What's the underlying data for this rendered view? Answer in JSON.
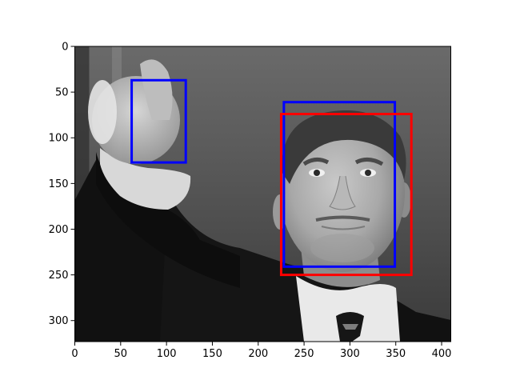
{
  "chart_data": {
    "type": "image",
    "xlim": [
      0,
      410
    ],
    "ylim": [
      323,
      0
    ],
    "x_ticks": [
      0,
      50,
      100,
      150,
      200,
      250,
      300,
      350,
      400
    ],
    "y_ticks": [
      0,
      50,
      100,
      150,
      200,
      250,
      300
    ],
    "image": {
      "mode": "grayscale",
      "subject": "man in dark suit and white shirt pointing with right hand toward the viewer"
    },
    "boxes": [
      {
        "color": "#0000ff",
        "x0": 62,
        "y0": 37,
        "x1": 121,
        "y1": 127
      },
      {
        "color": "#0000ff",
        "x0": 228,
        "y0": 61,
        "x1": 349,
        "y1": 241
      },
      {
        "color": "#ff0000",
        "x0": 225,
        "y0": 74,
        "x1": 367,
        "y1": 250
      }
    ]
  }
}
